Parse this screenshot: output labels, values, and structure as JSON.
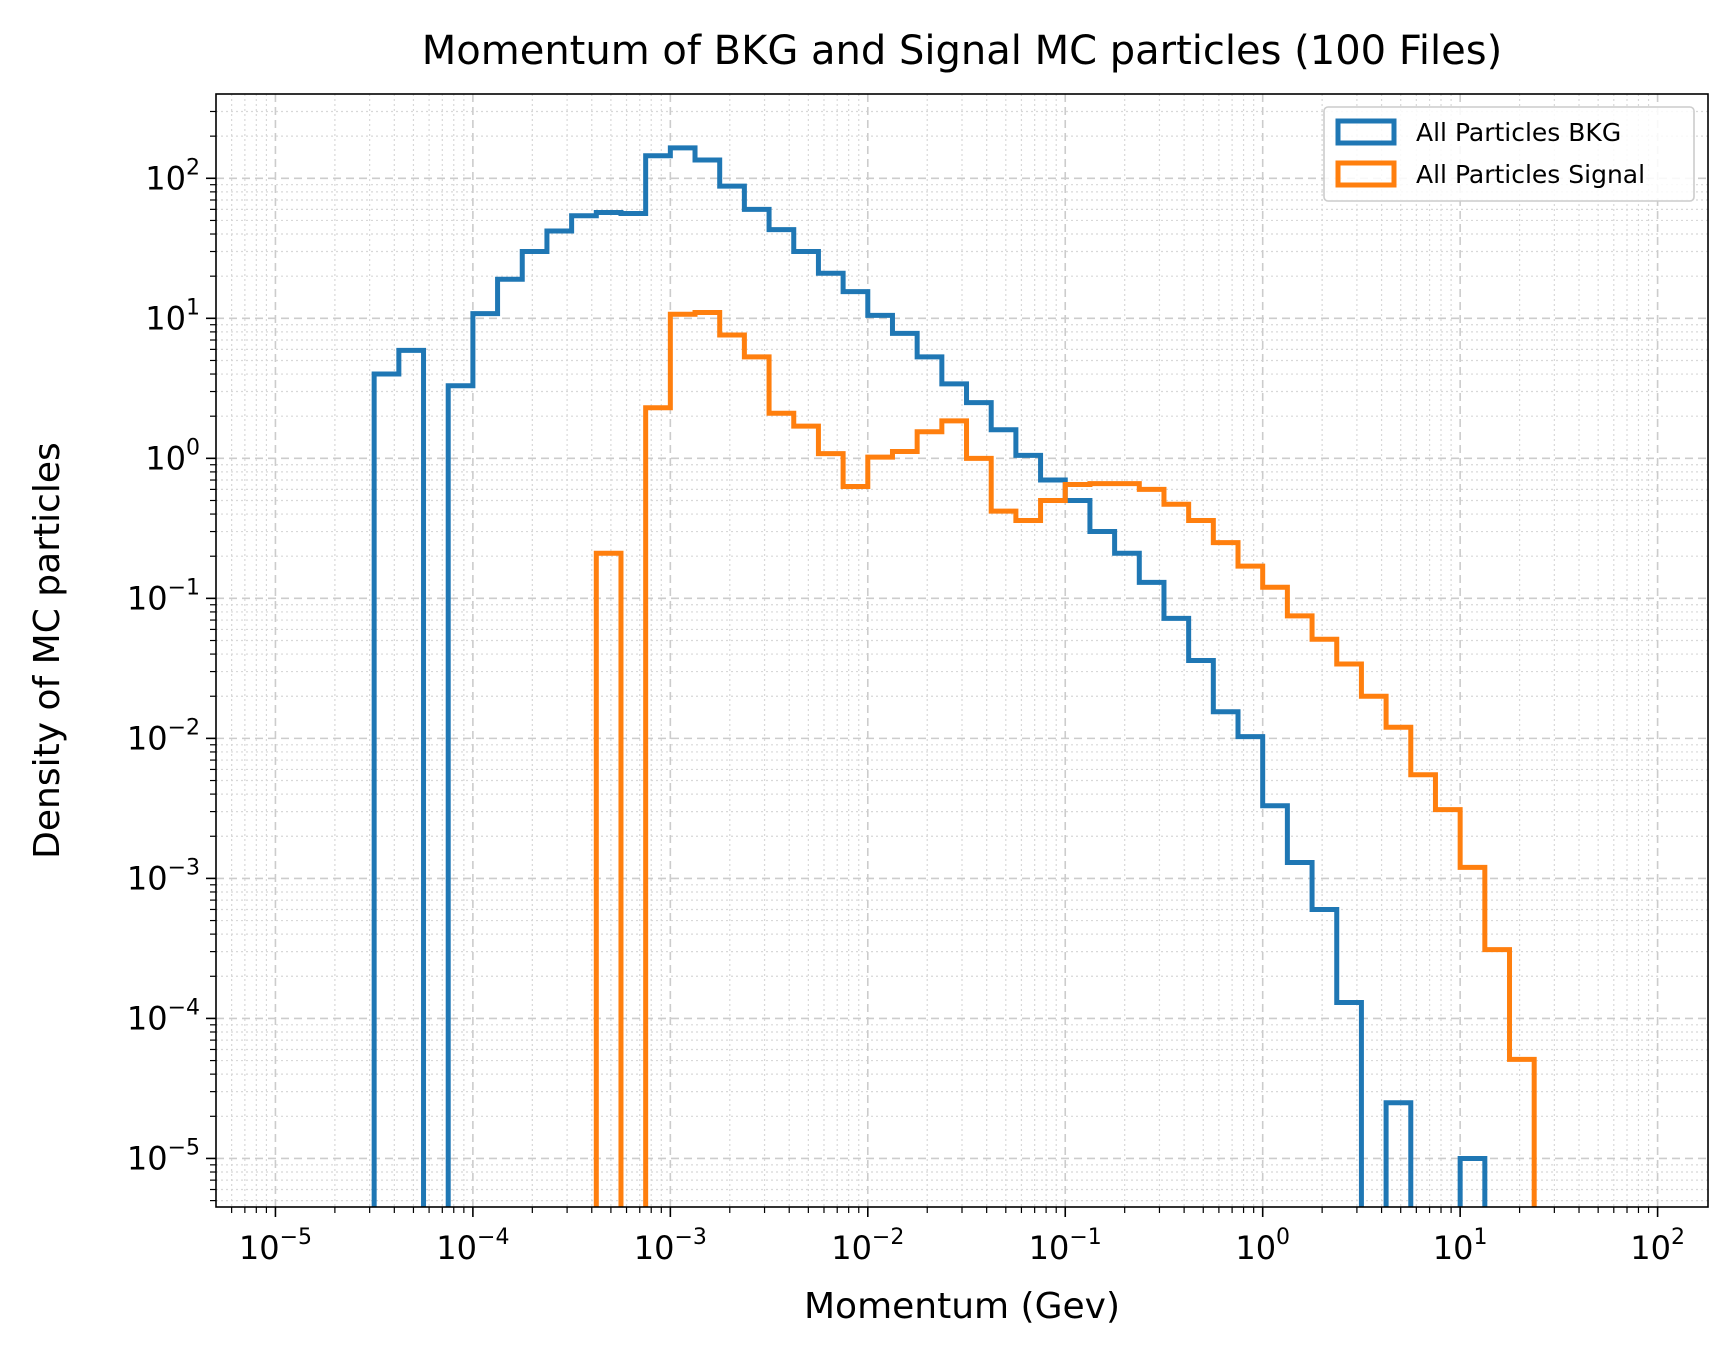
{
  "chart_data": {
    "type": "histogram-step",
    "title": "Momentum of BKG and Signal MC particles (100 Files)",
    "xlabel": "Momentum (Gev)",
    "ylabel": "Density of MC particles",
    "xscale": "log",
    "yscale": "log",
    "xlim": [
      5e-06,
      180
    ],
    "ylim": [
      4.5e-06,
      400
    ],
    "x_ticks": [
      {
        "value": 1e-05,
        "base": "10",
        "exp": "−5"
      },
      {
        "value": 0.0001,
        "base": "10",
        "exp": "−4"
      },
      {
        "value": 0.001,
        "base": "10",
        "exp": "−3"
      },
      {
        "value": 0.01,
        "base": "10",
        "exp": "−2"
      },
      {
        "value": 0.1,
        "base": "10",
        "exp": "−1"
      },
      {
        "value": 1,
        "base": "10",
        "exp": "0"
      },
      {
        "value": 10,
        "base": "10",
        "exp": "1"
      },
      {
        "value": 100,
        "base": "10",
        "exp": "2"
      }
    ],
    "y_ticks": [
      {
        "value": 1e-05,
        "base": "10",
        "exp": "−5"
      },
      {
        "value": 0.0001,
        "base": "10",
        "exp": "−4"
      },
      {
        "value": 0.001,
        "base": "10",
        "exp": "−3"
      },
      {
        "value": 0.01,
        "base": "10",
        "exp": "−2"
      },
      {
        "value": 0.1,
        "base": "10",
        "exp": "−1"
      },
      {
        "value": 1,
        "base": "10",
        "exp": "0"
      },
      {
        "value": 10,
        "base": "10",
        "exp": "1"
      },
      {
        "value": 100,
        "base": "10",
        "exp": "2"
      }
    ],
    "grid": true,
    "legend_position": "top-right",
    "bin_edges_log10_start": -4.5,
    "bin_edges_log10_step": 0.125,
    "series": [
      {
        "name": "All Particles BKG",
        "color": "#1f77b4",
        "values": [
          4.0,
          5.9,
          0,
          3.3,
          10.8,
          19,
          30,
          42,
          54,
          57,
          56,
          145,
          165,
          135,
          88,
          60,
          43,
          30,
          21,
          15.5,
          10.5,
          7.8,
          5.3,
          3.4,
          2.5,
          1.6,
          1.05,
          0.7,
          0.5,
          0.3,
          0.21,
          0.13,
          0.072,
          0.036,
          0.0155,
          0.0103,
          0.0033,
          0.0013,
          0.0006,
          0.00013,
          0,
          2.5e-05,
          0,
          0,
          1e-05
        ]
      },
      {
        "name": "All Particles Signal",
        "color": "#ff7f0e",
        "values": [
          0,
          0,
          0,
          0,
          0,
          0,
          0,
          0,
          0,
          0.21,
          0,
          2.3,
          10.7,
          11.0,
          7.6,
          5.3,
          2.1,
          1.7,
          1.08,
          0.63,
          1.02,
          1.12,
          1.55,
          1.85,
          1.0,
          0.42,
          0.36,
          0.5,
          0.65,
          0.66,
          0.66,
          0.6,
          0.47,
          0.36,
          0.25,
          0.17,
          0.12,
          0.075,
          0.051,
          0.034,
          0.02,
          0.012,
          0.0055,
          0.0031,
          0.0012,
          0.00031,
          5.1e-05
        ]
      }
    ]
  }
}
